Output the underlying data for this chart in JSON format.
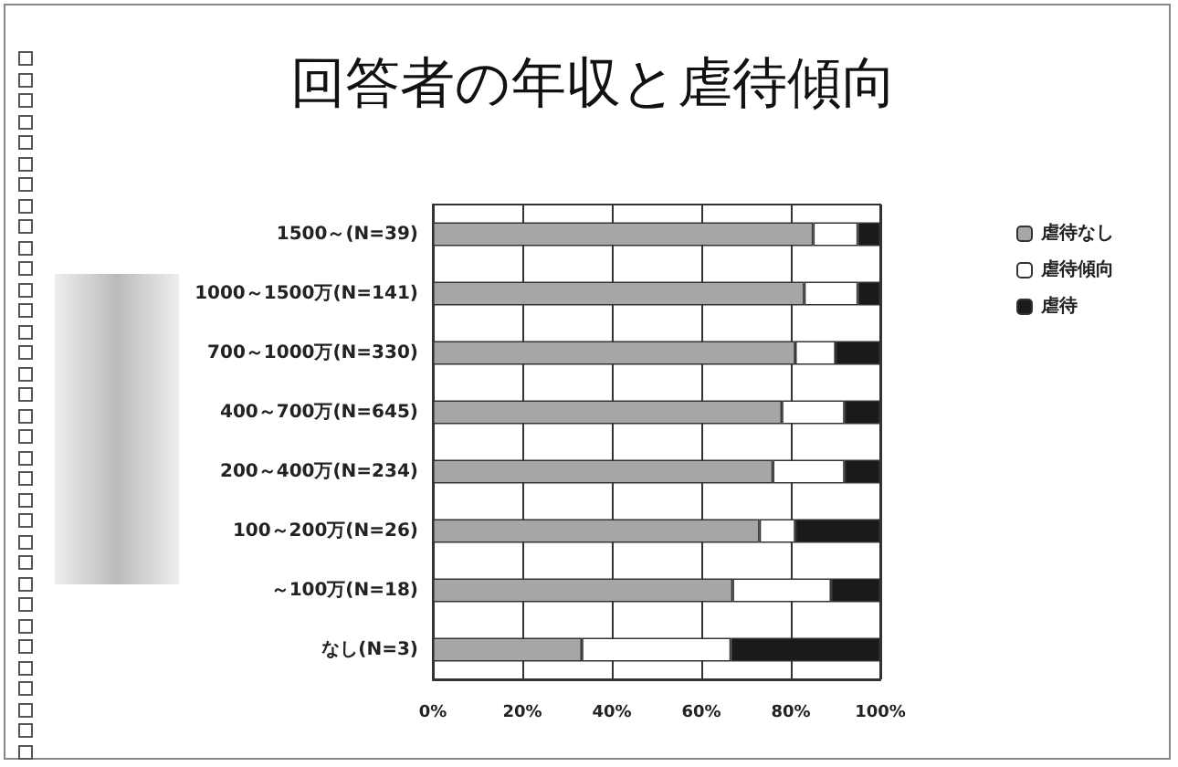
{
  "chart_data": {
    "type": "bar",
    "title": "回答者の年収と虐待傾向",
    "orientation": "horizontal",
    "stacked": true,
    "categories": [
      "1500～(N=39)",
      "1000～1500万(N=141)",
      "700～1000万(N=330)",
      "400～700万(N=645)",
      "200～400万(N=234)",
      "100～200万(N=26)",
      "～100万(N=18)",
      "なし(N=3)"
    ],
    "series": [
      {
        "name": "虐待なし",
        "color": "#a6a6a6",
        "values": [
          85,
          83,
          81,
          78,
          76,
          73,
          67,
          33.3
        ]
      },
      {
        "name": "虐待傾向",
        "color": "#ffffff",
        "values": [
          10,
          12,
          9,
          14,
          16,
          8,
          22,
          33.3
        ]
      },
      {
        "name": "虐待",
        "color": "#1a1a1a",
        "values": [
          5,
          5,
          10,
          8,
          8,
          19,
          11,
          33.4
        ]
      }
    ],
    "xlim": [
      0,
      100
    ],
    "xticks": [
      {
        "value": 0,
        "label": "0%"
      },
      {
        "value": 20,
        "label": "20%"
      },
      {
        "value": 40,
        "label": "40%"
      },
      {
        "value": 60,
        "label": "60%"
      },
      {
        "value": 80,
        "label": "80%"
      },
      {
        "value": 100,
        "label": "100%"
      }
    ],
    "grid": "x",
    "legend": "top right"
  }
}
